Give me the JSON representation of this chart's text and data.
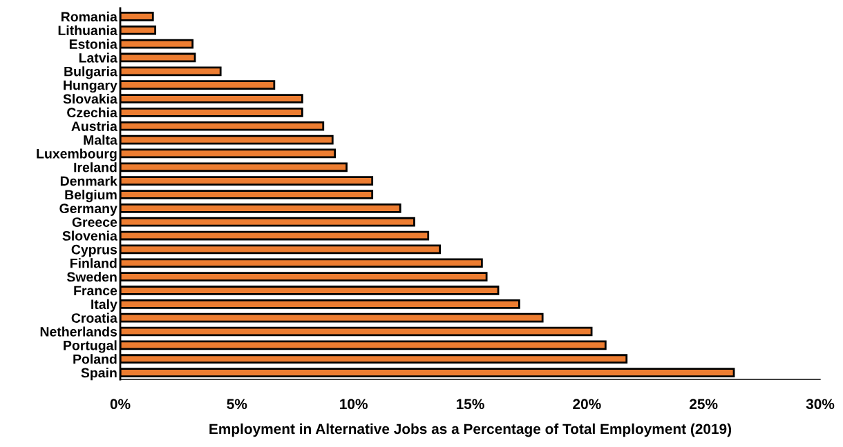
{
  "chart_data": {
    "type": "bar",
    "orientation": "horizontal",
    "xlabel": "Employment in Alternative Jobs as a Percentage of Total Employment (2019)",
    "categories": [
      "Romania",
      "Lithuania",
      "Estonia",
      "Latvia",
      "Bulgaria",
      "Hungary",
      "Slovakia",
      "Czechia",
      "Austria",
      "Malta",
      "Luxembourg",
      "Ireland",
      "Denmark",
      "Belgium",
      "Germany",
      "Greece",
      "Slovenia",
      "Cyprus",
      "Finland",
      "Sweden",
      "France",
      "Italy",
      "Croatia",
      "Netherlands",
      "Portugal",
      "Poland",
      "Spain"
    ],
    "values": [
      1.4,
      1.5,
      3.1,
      3.2,
      4.3,
      6.6,
      7.8,
      7.8,
      8.7,
      9.1,
      9.2,
      9.7,
      10.8,
      10.8,
      12.0,
      12.6,
      13.2,
      13.7,
      15.5,
      15.7,
      16.2,
      17.1,
      18.1,
      20.2,
      20.8,
      21.7,
      26.3
    ],
    "color": "#ed7d31",
    "xlim": [
      0,
      30
    ],
    "xticks": [
      {
        "value": 0,
        "label": "0%"
      },
      {
        "value": 5,
        "label": "5%"
      },
      {
        "value": 10,
        "label": "10%"
      },
      {
        "value": 15,
        "label": "15%"
      },
      {
        "value": 20,
        "label": "20%"
      },
      {
        "value": 25,
        "label": "25%"
      },
      {
        "value": 30,
        "label": "30%"
      }
    ],
    "grid": false,
    "legend": false
  }
}
